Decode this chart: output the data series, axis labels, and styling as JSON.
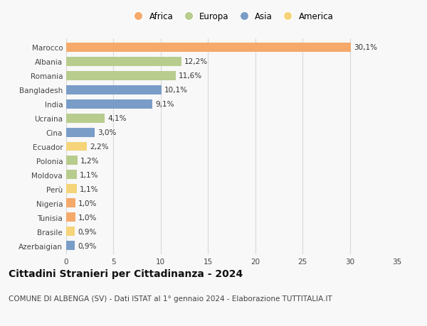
{
  "countries": [
    "Marocco",
    "Albania",
    "Romania",
    "Bangladesh",
    "India",
    "Ucraina",
    "Cina",
    "Ecuador",
    "Polonia",
    "Moldova",
    "Perù",
    "Nigeria",
    "Tunisia",
    "Brasile",
    "Azerbaigian"
  ],
  "values": [
    30.1,
    12.2,
    11.6,
    10.1,
    9.1,
    4.1,
    3.0,
    2.2,
    1.2,
    1.1,
    1.1,
    1.0,
    1.0,
    0.9,
    0.9
  ],
  "labels": [
    "30,1%",
    "12,2%",
    "11,6%",
    "10,1%",
    "9,1%",
    "4,1%",
    "3,0%",
    "2,2%",
    "1,2%",
    "1,1%",
    "1,1%",
    "1,0%",
    "1,0%",
    "0,9%",
    "0,9%"
  ],
  "continents": [
    "Africa",
    "Europa",
    "Europa",
    "Asia",
    "Asia",
    "Europa",
    "Asia",
    "America",
    "Europa",
    "Europa",
    "America",
    "Africa",
    "Africa",
    "America",
    "Asia"
  ],
  "colors": {
    "Africa": "#F5A96B",
    "Europa": "#B8CC8E",
    "Asia": "#7A9DC8",
    "America": "#F5D47A"
  },
  "legend_order": [
    "Africa",
    "Europa",
    "Asia",
    "America"
  ],
  "xlim": [
    0,
    35
  ],
  "xticks": [
    0,
    5,
    10,
    15,
    20,
    25,
    30,
    35
  ],
  "title": "Cittadini Stranieri per Cittadinanza - 2024",
  "subtitle": "COMUNE DI ALBENGA (SV) - Dati ISTAT al 1° gennaio 2024 - Elaborazione TUTTITALIA.IT",
  "background_color": "#f8f8f8",
  "grid_color": "#d8d8d8",
  "bar_height": 0.65,
  "label_fontsize": 7.5,
  "tick_fontsize": 7.5,
  "title_fontsize": 10,
  "subtitle_fontsize": 7.5
}
